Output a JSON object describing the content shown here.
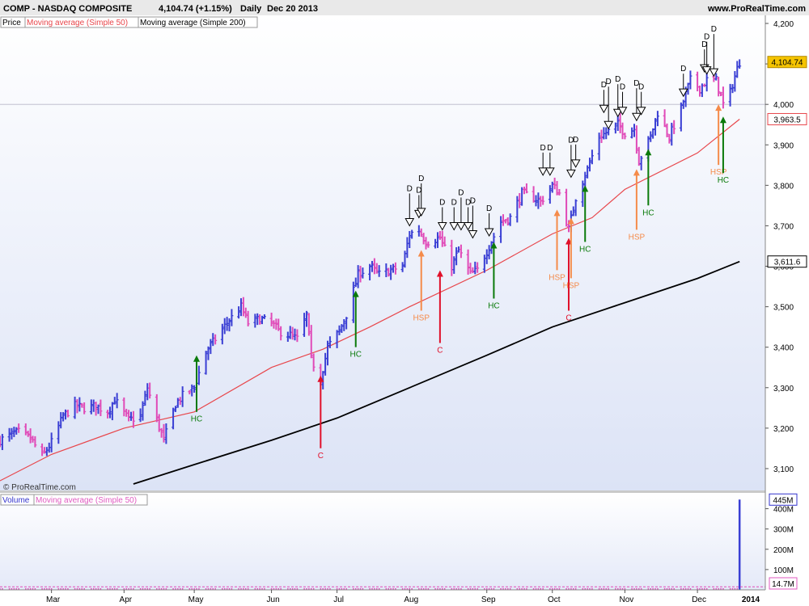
{
  "header": {
    "symbol": "COMP - NASDAQ COMPOSITE",
    "last": "4,104.74 (+1.15%)",
    "period": "Daily",
    "date": "Dec 20 2013",
    "site": "www.ProRealTime.com"
  },
  "legend_price": {
    "items": [
      {
        "label": "Price",
        "color": "#000000"
      },
      {
        "label": "Moving average (Simple 50)",
        "color": "#e8464b"
      },
      {
        "label": "Moving average (Simple 200)",
        "color": "#000000"
      }
    ]
  },
  "legend_volume": {
    "items": [
      {
        "label": "Volume",
        "color": "#3333cc"
      },
      {
        "label": "Moving average (Simple 50)",
        "color": "#e05ac0"
      }
    ]
  },
  "copyright": "© ProRealTime.com",
  "price_tags": [
    {
      "label": "4,104.74",
      "value": 4104.74,
      "bg": "#f5c400",
      "fg": "#000000",
      "border": "#b08a00"
    },
    {
      "label": "3,963.5",
      "value": 3963.5,
      "bg": "#ffffff",
      "fg": "#e8464b",
      "border": "#e8464b"
    },
    {
      "label": "3,611.6",
      "value": 3611.6,
      "bg": "#ffffff",
      "fg": "#000000",
      "border": "#000000"
    }
  ],
  "volume_tags": [
    {
      "label": "445M",
      "value": 445,
      "bg": "#ffffff",
      "fg": "#3333cc",
      "border": "#3333cc"
    },
    {
      "label": "14.7M",
      "value": 14.7,
      "bg": "#ffffff",
      "fg": "#e05ac0",
      "border": "#e05ac0"
    }
  ],
  "colors": {
    "up_bar": "#3a3fd4",
    "down_bar": "#e04ab8",
    "ma50": "#e8464b",
    "ma200": "#000000",
    "hc": "#0a7a0a",
    "c": "#e0102a",
    "hsp": "#f58b4a",
    "d": "#000000",
    "panel_bg_top": "#ffffff",
    "panel_bg_bottom": "#dde4f7"
  },
  "chart_data": [
    {
      "type": "ohlc",
      "ylim": [
        3060,
        4210
      ],
      "y_ticks": [
        3100,
        3200,
        3300,
        3400,
        3500,
        3600,
        3700,
        3800,
        3900,
        4000,
        4100,
        4200
      ],
      "y_tick_labels": [
        "3,100",
        "3,200",
        "3,300",
        "3,400",
        "3,500",
        "3,600",
        "3,700",
        "3,800",
        "3,900",
        "4,000",
        "4,100",
        "4,200"
      ],
      "x_labels": [
        {
          "label": "Mar",
          "date": "2013-03-01"
        },
        {
          "label": "Apr",
          "date": "2013-04-01"
        },
        {
          "label": "May",
          "date": "2013-05-01"
        },
        {
          "label": "Jun",
          "date": "2013-06-03"
        },
        {
          "label": "Jul",
          "date": "2013-07-01"
        },
        {
          "label": "Aug",
          "date": "2013-08-01"
        },
        {
          "label": "Sep",
          "date": "2013-09-03"
        },
        {
          "label": "Oct",
          "date": "2013-10-01"
        },
        {
          "label": "Nov",
          "date": "2013-11-01"
        },
        {
          "label": "Dec",
          "date": "2013-12-02"
        },
        {
          "label": "2014",
          "date": "2014-01-02"
        }
      ],
      "x_range": [
        "2013-02-07",
        "2013-12-31"
      ],
      "close_path": [
        [
          "2013-02-07",
          3170
        ],
        [
          "2013-02-12",
          3185
        ],
        [
          "2013-02-15",
          3190
        ],
        [
          "2013-02-20",
          3175
        ],
        [
          "2013-02-25",
          3130
        ],
        [
          "2013-03-01",
          3165
        ],
        [
          "2013-03-06",
          3230
        ],
        [
          "2013-03-11",
          3255
        ],
        [
          "2013-03-15",
          3250
        ],
        [
          "2013-03-20",
          3255
        ],
        [
          "2013-03-25",
          3240
        ],
        [
          "2013-03-28",
          3270
        ],
        [
          "2013-04-03",
          3220
        ],
        [
          "2013-04-08",
          3230
        ],
        [
          "2013-04-11",
          3300
        ],
        [
          "2013-04-15",
          3220
        ],
        [
          "2013-04-18",
          3170
        ],
        [
          "2013-04-23",
          3260
        ],
        [
          "2013-04-26",
          3280
        ],
        [
          "2013-05-01",
          3300
        ],
        [
          "2013-05-06",
          3390
        ],
        [
          "2013-05-10",
          3420
        ],
        [
          "2013-05-15",
          3460
        ],
        [
          "2013-05-21",
          3500
        ],
        [
          "2013-05-24",
          3460
        ],
        [
          "2013-05-29",
          3470
        ],
        [
          "2013-06-03",
          3460
        ],
        [
          "2013-06-06",
          3440
        ],
        [
          "2013-06-11",
          3430
        ],
        [
          "2013-06-14",
          3420
        ],
        [
          "2013-06-18",
          3480
        ],
        [
          "2013-06-20",
          3370
        ],
        [
          "2013-06-24",
          3320
        ],
        [
          "2013-06-27",
          3400
        ],
        [
          "2013-07-02",
          3440
        ],
        [
          "2013-07-05",
          3480
        ],
        [
          "2013-07-10",
          3580
        ],
        [
          "2013-07-15",
          3600
        ],
        [
          "2013-07-19",
          3580
        ],
        [
          "2013-07-24",
          3590
        ],
        [
          "2013-07-29",
          3600
        ],
        [
          "2013-08-01",
          3680
        ],
        [
          "2013-08-05",
          3690
        ],
        [
          "2013-08-08",
          3660
        ],
        [
          "2013-08-14",
          3670
        ],
        [
          "2013-08-19",
          3600
        ],
        [
          "2013-08-22",
          3640
        ],
        [
          "2013-08-27",
          3580
        ],
        [
          "2013-08-30",
          3590
        ],
        [
          "2013-09-04",
          3650
        ],
        [
          "2013-09-09",
          3710
        ],
        [
          "2013-09-13",
          3720
        ],
        [
          "2013-09-18",
          3780
        ],
        [
          "2013-09-23",
          3770
        ],
        [
          "2013-09-26",
          3760
        ],
        [
          "2013-10-01",
          3800
        ],
        [
          "2013-10-04",
          3780
        ],
        [
          "2013-10-08",
          3690
        ],
        [
          "2013-10-11",
          3770
        ],
        [
          "2013-10-16",
          3840
        ],
        [
          "2013-10-21",
          3920
        ],
        [
          "2013-10-24",
          3930
        ],
        [
          "2013-10-29",
          3950
        ],
        [
          "2013-11-01",
          3930
        ],
        [
          "2013-11-05",
          3940
        ],
        [
          "2013-11-07",
          3860
        ],
        [
          "2013-11-12",
          3920
        ],
        [
          "2013-11-15",
          3980
        ],
        [
          "2013-11-20",
          3920
        ],
        [
          "2013-11-25",
          3990
        ],
        [
          "2013-11-29",
          4060
        ],
        [
          "2013-12-03",
          4040
        ],
        [
          "2013-12-06",
          4060
        ],
        [
          "2013-12-10",
          4060
        ],
        [
          "2013-12-13",
          4000
        ],
        [
          "2013-12-16",
          4030
        ],
        [
          "2013-12-18",
          4070
        ],
        [
          "2013-12-20",
          4104.74
        ]
      ],
      "ma50": [
        [
          "2013-02-07",
          3070
        ],
        [
          "2013-03-01",
          3135
        ],
        [
          "2013-04-01",
          3200
        ],
        [
          "2013-05-01",
          3240
        ],
        [
          "2013-06-03",
          3350
        ],
        [
          "2013-06-25",
          3395
        ],
        [
          "2013-07-15",
          3450
        ],
        [
          "2013-08-01",
          3500
        ],
        [
          "2013-09-03",
          3590
        ],
        [
          "2013-10-01",
          3680
        ],
        [
          "2013-10-18",
          3720
        ],
        [
          "2013-11-01",
          3790
        ],
        [
          "2013-12-02",
          3880
        ],
        [
          "2013-12-20",
          3963.5
        ]
      ],
      "ma200": [
        [
          "2013-04-05",
          3062
        ],
        [
          "2013-05-01",
          3110
        ],
        [
          "2013-06-03",
          3170
        ],
        [
          "2013-07-01",
          3225
        ],
        [
          "2013-08-01",
          3300
        ],
        [
          "2013-09-03",
          3380
        ],
        [
          "2013-10-01",
          3450
        ],
        [
          "2013-11-01",
          3510
        ],
        [
          "2013-12-02",
          3570
        ],
        [
          "2013-12-20",
          3611.6
        ]
      ],
      "annotations": [
        {
          "kind": "HC",
          "date": "2013-05-02",
          "price": 3380
        },
        {
          "kind": "C",
          "date": "2013-06-24",
          "price": 3330
        },
        {
          "kind": "HC",
          "date": "2013-07-09",
          "price": 3540
        },
        {
          "kind": "HSP",
          "date": "2013-08-06",
          "price": 3640
        },
        {
          "kind": "C",
          "date": "2013-08-14",
          "price": 3590
        },
        {
          "kind": "HC",
          "date": "2013-09-06",
          "price": 3660
        },
        {
          "kind": "HSP",
          "date": "2013-10-03",
          "price": 3740
        },
        {
          "kind": "C",
          "date": "2013-10-08",
          "price": 3670
        },
        {
          "kind": "HSP",
          "date": "2013-10-09",
          "price": 3720
        },
        {
          "kind": "HC",
          "date": "2013-10-15",
          "price": 3800
        },
        {
          "kind": "HSP",
          "date": "2013-11-06",
          "price": 3840
        },
        {
          "kind": "HC",
          "date": "2013-11-11",
          "price": 3890
        },
        {
          "kind": "HSP",
          "date": "2013-12-11",
          "price": 4000
        },
        {
          "kind": "HC",
          "date": "2013-12-13",
          "price": 3970
        }
      ],
      "d_markers": [
        {
          "date": "2013-08-01",
          "price": 3700,
          "tier": 1
        },
        {
          "date": "2013-08-05",
          "price": 3720,
          "tier": 0
        },
        {
          "date": "2013-08-06",
          "price": 3725,
          "tier": 1
        },
        {
          "date": "2013-08-15",
          "price": 3690,
          "tier": 0
        },
        {
          "date": "2013-08-20",
          "price": 3690,
          "tier": 0
        },
        {
          "date": "2013-08-23",
          "price": 3690,
          "tier": 1
        },
        {
          "date": "2013-08-26",
          "price": 3690,
          "tier": 0
        },
        {
          "date": "2013-08-28",
          "price": 3670,
          "tier": 1
        },
        {
          "date": "2013-09-04",
          "price": 3675,
          "tier": 0
        },
        {
          "date": "2013-09-27",
          "price": 3825,
          "tier": 0
        },
        {
          "date": "2013-09-30",
          "price": 3825,
          "tier": 0
        },
        {
          "date": "2013-10-09",
          "price": 3820,
          "tier": 1
        },
        {
          "date": "2013-10-11",
          "price": 3845,
          "tier": 0
        },
        {
          "date": "2013-10-23",
          "price": 3980,
          "tier": 0
        },
        {
          "date": "2013-10-25",
          "price": 3940,
          "tier": 2
        },
        {
          "date": "2013-10-29",
          "price": 3970,
          "tier": 1
        },
        {
          "date": "2013-10-31",
          "price": 3975,
          "tier": 0
        },
        {
          "date": "2013-11-06",
          "price": 3960,
          "tier": 1
        },
        {
          "date": "2013-11-08",
          "price": 3975,
          "tier": 0
        },
        {
          "date": "2013-11-26",
          "price": 4020,
          "tier": 0
        },
        {
          "date": "2013-12-05",
          "price": 4080,
          "tier": 0
        },
        {
          "date": "2013-12-06",
          "price": 4075,
          "tier": 1
        },
        {
          "date": "2013-12-09",
          "price": 4070,
          "tier": 2
        }
      ]
    },
    {
      "type": "bar",
      "title": "Volume",
      "ylim": [
        0,
        470
      ],
      "y_ticks": [
        100,
        200,
        300,
        400
      ],
      "y_tick_labels": [
        "100M",
        "200M",
        "300M",
        "400M"
      ],
      "last_volume_date": "2013-12-20",
      "last_volume": 445,
      "ma50_level": 14.7
    }
  ]
}
